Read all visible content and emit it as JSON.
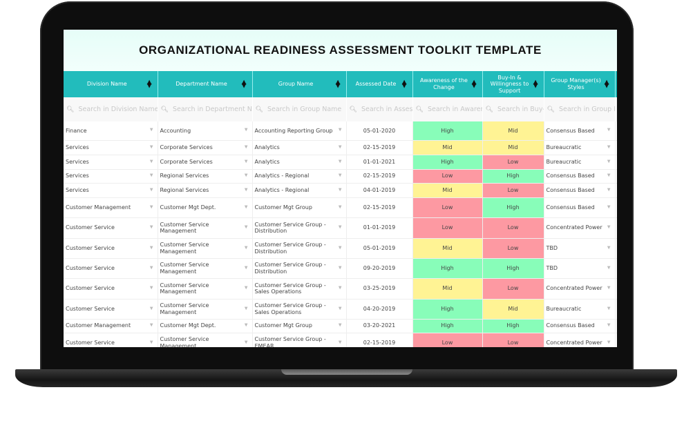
{
  "title": "ORGANIZATIONAL READINESS ASSESSMENT TOOLKIT TEMPLATE",
  "columns": [
    {
      "label": "Division Name",
      "search": "Search in Division Name"
    },
    {
      "label": "Department Name",
      "search": "Search in Department Name"
    },
    {
      "label": "Group Name",
      "search": "Search in Group Name"
    },
    {
      "label": "Assessed Date",
      "search": "Search in Assessed Date"
    },
    {
      "label": "Awareness of the Change",
      "search": "Search in Awareness of the Change"
    },
    {
      "label": "Buy-In & Willingness to Support",
      "search": "Search in Buy-In"
    },
    {
      "label": "Group Manager(s) Styles",
      "search": "Search in Group Manager(s) Styles"
    }
  ],
  "colors": {
    "header": "#22bcbc",
    "High": "#88fdb9",
    "Mid": "#fff394",
    "Low": "#fd99a2"
  },
  "rows": [
    [
      "Finance",
      "Accounting",
      "Accounting Reporting Group",
      "05-01-2020",
      "High",
      "Mid",
      "Consensus Based"
    ],
    [
      "Services",
      "Corporate Services",
      "Analytics",
      "02-15-2019",
      "Mid",
      "Mid",
      "Bureaucratic"
    ],
    [
      "Services",
      "Corporate Services",
      "Analytics",
      "01-01-2021",
      "High",
      "Low",
      "Bureaucratic"
    ],
    [
      "Services",
      "Regional Services",
      "Analytics - Regional",
      "02-15-2019",
      "Low",
      "High",
      "Consensus Based"
    ],
    [
      "Services",
      "Regional Services",
      "Analytics - Regional",
      "04-01-2019",
      "Mid",
      "Low",
      "Consensus Based"
    ],
    [
      "Customer Management",
      "Customer Mgt Dept.",
      "Customer Mgt Group",
      "02-15-2019",
      "Low",
      "High",
      "Consensus Based"
    ],
    [
      "Customer Service",
      "Customer Service Management",
      "Customer Service Group - Distribution",
      "01-01-2019",
      "Low",
      "Low",
      "Concentrated Power"
    ],
    [
      "Customer Service",
      "Customer Service Management",
      "Customer Service Group - Distribution",
      "05-01-2019",
      "Mid",
      "Low",
      "TBD"
    ],
    [
      "Customer Service",
      "Customer Service Management",
      "Customer Service Group - Distribution",
      "09-20-2019",
      "High",
      "High",
      "TBD"
    ],
    [
      "Customer Service",
      "Customer Service Management",
      "Customer Service Group - Sales Operations",
      "03-25-2019",
      "Mid",
      "Low",
      "Concentrated Power"
    ],
    [
      "Customer Service",
      "Customer Service Management",
      "Customer Service Group - Sales Operations",
      "04-20-2019",
      "High",
      "Mid",
      "Bureaucratic"
    ],
    [
      "Customer Management",
      "Customer Mgt Dept.",
      "Customer Mgt Group",
      "03-20-2021",
      "High",
      "High",
      "Consensus Based"
    ],
    [
      "Customer Service",
      "Customer Service Management",
      "Customer Service Group - EMEAR",
      "02-15-2019",
      "Low",
      "Low",
      "Concentrated Power"
    ]
  ]
}
